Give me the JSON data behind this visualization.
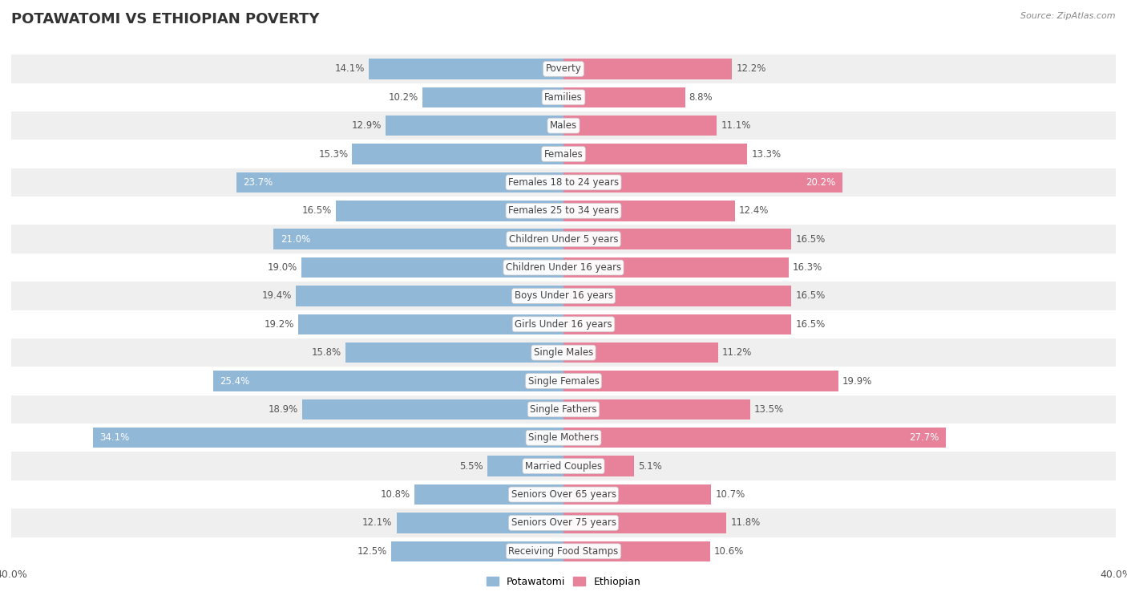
{
  "title": "POTAWATOMI VS ETHIOPIAN POVERTY",
  "source": "Source: ZipAtlas.com",
  "categories": [
    "Poverty",
    "Families",
    "Males",
    "Females",
    "Females 18 to 24 years",
    "Females 25 to 34 years",
    "Children Under 5 years",
    "Children Under 16 years",
    "Boys Under 16 years",
    "Girls Under 16 years",
    "Single Males",
    "Single Females",
    "Single Fathers",
    "Single Mothers",
    "Married Couples",
    "Seniors Over 65 years",
    "Seniors Over 75 years",
    "Receiving Food Stamps"
  ],
  "potawatomi": [
    14.1,
    10.2,
    12.9,
    15.3,
    23.7,
    16.5,
    21.0,
    19.0,
    19.4,
    19.2,
    15.8,
    25.4,
    18.9,
    34.1,
    5.5,
    10.8,
    12.1,
    12.5
  ],
  "ethiopian": [
    12.2,
    8.8,
    11.1,
    13.3,
    20.2,
    12.4,
    16.5,
    16.3,
    16.5,
    16.5,
    11.2,
    19.9,
    13.5,
    27.7,
    5.1,
    10.7,
    11.8,
    10.6
  ],
  "potawatomi_color": "#92b8d8",
  "ethiopian_color": "#e8829a",
  "background_row_light": "#efefef",
  "background_row_white": "#ffffff",
  "xlim": 40.0,
  "bar_height": 0.72,
  "label_fontsize": 8.5,
  "category_fontsize": 8.5,
  "title_fontsize": 13,
  "legend_fontsize": 9
}
